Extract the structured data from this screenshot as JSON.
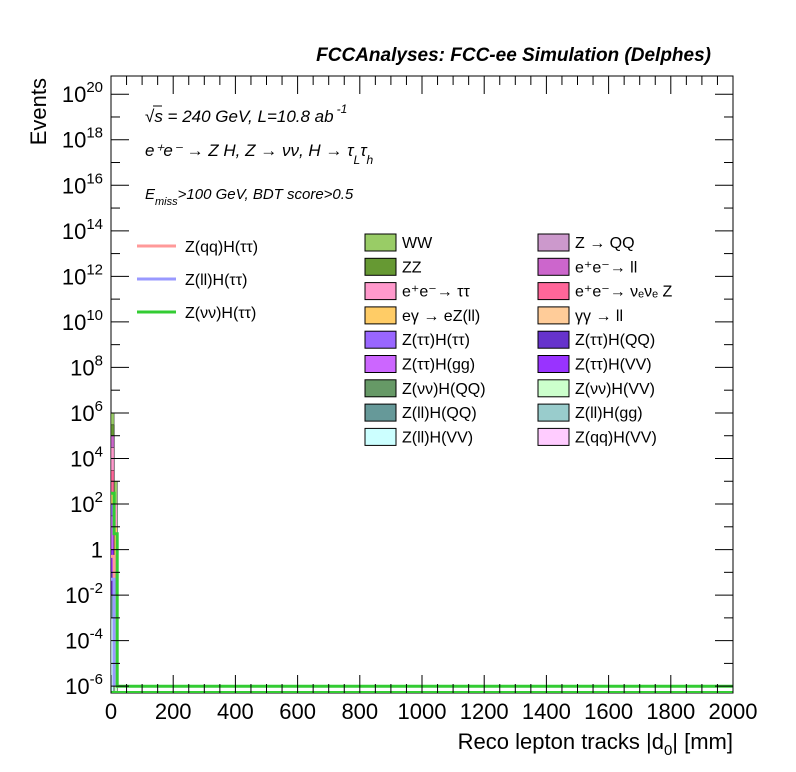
{
  "chart_data": {
    "type": "bar",
    "stacked": true,
    "header": "FCCAnalyses: FCC-ee Simulation (Delphes)",
    "annotations": {
      "energy": "√s = 240 GeV, L=10.8 ab",
      "energy_exp": "-1",
      "process": "e⁺e⁻ → Z H, Z → νν, H → τ",
      "process_sub1": "L",
      "process_mid": "τ",
      "process_sub2": "h",
      "cuts_e": "E",
      "cuts_sub": "miss",
      "cuts_rest": ">100 GeV, BDT score>0.5"
    },
    "xlabel": "Reco lepton tracks |d",
    "xlabel_sub": "0",
    "xlabel_end": "| [mm]",
    "ylabel": "Events",
    "xlim": [
      0,
      2000
    ],
    "ylim_log10": [
      -6.3,
      20.8
    ],
    "log_y": true,
    "x_ticks": [
      "0",
      "200",
      "400",
      "600",
      "800",
      "1000",
      "1200",
      "1400",
      "1600",
      "1800",
      "2000"
    ],
    "y_ticks": [
      {
        "base": "10",
        "exp": "20",
        "log": 20
      },
      {
        "base": "10",
        "exp": "18",
        "log": 18
      },
      {
        "base": "10",
        "exp": "16",
        "log": 16
      },
      {
        "base": "10",
        "exp": "14",
        "log": 14
      },
      {
        "base": "10",
        "exp": "12",
        "log": 12
      },
      {
        "base": "10",
        "exp": "10",
        "log": 10
      },
      {
        "base": "10",
        "exp": "8",
        "log": 8
      },
      {
        "base": "10",
        "exp": "6",
        "log": 6
      },
      {
        "base": "10",
        "exp": "4",
        "log": 4
      },
      {
        "base": "10",
        "exp": "2",
        "log": 2
      },
      {
        "base": "1",
        "exp": "",
        "log": 0
      },
      {
        "base": "10",
        "exp": "-2",
        "log": -2
      },
      {
        "base": "10",
        "exp": "-4",
        "log": -4
      },
      {
        "base": "10",
        "exp": "-6",
        "log": -6
      }
    ],
    "bins": [
      {
        "x0": 0,
        "x1": 10,
        "stack": [
          {
            "name": "WW",
            "color": "#99cc66",
            "top": 1000000
          },
          {
            "name": "ZZ",
            "color": "#669933",
            "top": 300000
          },
          {
            "name": "e+e- → ll",
            "color": "#cc66cc",
            "top": 100000
          },
          {
            "name": "e+e- → ττ",
            "color": "#ff99cc",
            "top": 30000
          },
          {
            "name": "e+e- → νeνe Z",
            "color": "#ff6699",
            "top": 3000
          },
          {
            "name": "eγ → eZ(ll)",
            "color": "#ffcc66",
            "top": 300
          },
          {
            "name": "Z(ττ)H(ττ)",
            "color": "#9966ff",
            "top": 100
          },
          {
            "name": "Z(ττ)H(gg)",
            "color": "#cc66ff",
            "top": 30
          },
          {
            "name": "Z(ττ)H(VV)",
            "color": "#9933ff",
            "top": 1
          },
          {
            "name": "Z(ττ)H(QQ)",
            "color": "#6633cc",
            "top": 0.1
          },
          {
            "name": "Z(ll)H(QQ)",
            "color": "#669999",
            "top": 0.01
          },
          {
            "name": "Z(ll)H(VV)",
            "color": "#ccffff",
            "top": 0.001
          }
        ]
      },
      {
        "x0": 10,
        "x1": 20,
        "stack": [
          {
            "name": "WW",
            "color": "#99cc66",
            "top": 1000
          },
          {
            "name": "e+e- → ττ",
            "color": "#ff99cc",
            "top": 100
          },
          {
            "name": "eγ → eZ(ll)",
            "color": "#ffcc66",
            "top": 10
          },
          {
            "name": "Z(νν)H(QQ)",
            "color": "#669966",
            "top": 0.1
          },
          {
            "name": "Z(νν)H(VV)",
            "color": "#ccffcc",
            "top": 0.01
          }
        ]
      }
    ],
    "lines": [
      {
        "name": "Z(qq)H(ττ)",
        "color": "#ff9999",
        "points": [
          [
            0,
            0.5
          ],
          [
            10,
            0.5
          ],
          [
            10,
            1e-06
          ]
        ]
      },
      {
        "name": "Z(ll)H(ττ)",
        "color": "#9999ff",
        "points": [
          [
            0,
            0.05
          ],
          [
            10,
            0.05
          ],
          [
            10,
            1e-06
          ]
        ]
      },
      {
        "name": "Z(νν)H(ττ)",
        "color": "#33cc33",
        "points": [
          [
            0,
            300
          ],
          [
            10,
            300
          ],
          [
            10,
            5
          ],
          [
            20,
            5
          ],
          [
            20,
            1e-06
          ],
          [
            2000,
            1e-06
          ]
        ]
      }
    ],
    "legend_lines": [
      {
        "label": "Z(qq)H(ττ)",
        "color": "#ff9999"
      },
      {
        "label": "Z(ll)H(ττ)",
        "color": "#9999ff"
      },
      {
        "label": "Z(νν)H(ττ)",
        "color": "#33cc33"
      }
    ],
    "legend_boxes": [
      {
        "label": "WW",
        "color": "#99cc66"
      },
      {
        "label": "Z → QQ",
        "color": "#cc99cc"
      },
      {
        "label": "ZZ",
        "color": "#669933"
      },
      {
        "label": "e⁺e⁻→ ll",
        "color": "#cc66cc"
      },
      {
        "label": "e⁺e⁻→ ττ",
        "color": "#ff99cc"
      },
      {
        "label": "e⁺e⁻→ νₑνₑ Z",
        "color": "#ff6699"
      },
      {
        "label": "eγ → eZ(ll)",
        "color": "#ffcc66"
      },
      {
        "label": "γγ → ll",
        "color": "#ffcc99"
      },
      {
        "label": "Z(ττ)H(ττ)",
        "color": "#9966ff"
      },
      {
        "label": "Z(ττ)H(QQ)",
        "color": "#6633cc"
      },
      {
        "label": "Z(ττ)H(gg)",
        "color": "#cc66ff"
      },
      {
        "label": "Z(ττ)H(VV)",
        "color": "#9933ff"
      },
      {
        "label": "Z(νν)H(QQ)",
        "color": "#669966"
      },
      {
        "label": "Z(νν)H(VV)",
        "color": "#ccffcc"
      },
      {
        "label": "Z(ll)H(QQ)",
        "color": "#669999"
      },
      {
        "label": "Z(ll)H(gg)",
        "color": "#99cccc"
      },
      {
        "label": "Z(ll)H(VV)",
        "color": "#ccffff"
      },
      {
        "label": "Z(qq)H(VV)",
        "color": "#ffccff"
      }
    ]
  }
}
